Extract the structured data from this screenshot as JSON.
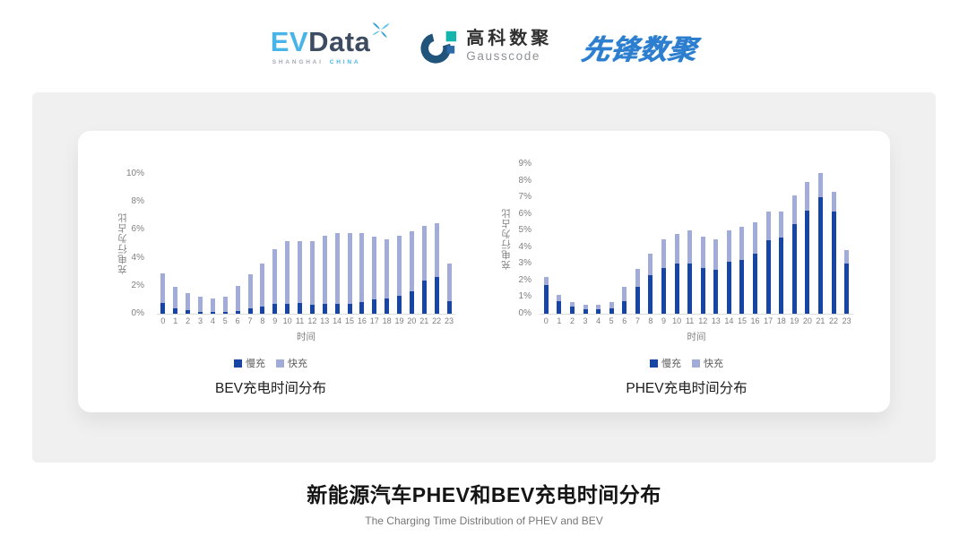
{
  "header": {
    "evdata": {
      "ev": "EV",
      "data": "Data",
      "sub_left": "SHANGHAI",
      "sub_right": "CHINA"
    },
    "gausscode": {
      "name_cn": "高科数聚",
      "name_en": "Gausscode"
    },
    "xianfeng": {
      "name": "先锋数聚"
    }
  },
  "footer": {
    "title": "新能源汽车PHEV和BEV充电时间分布",
    "subtitle": "The Charging Time Distribution of PHEV and BEV"
  },
  "colors": {
    "slow_charge": "#1745a5",
    "fast_charge": "#a2acd9",
    "axis_text": "#7f7f7f",
    "panel_bg": "#f0f0f0",
    "card_bg": "#ffffff"
  },
  "chart_data": [
    {
      "type": "bar",
      "stacked": true,
      "title": "BEV充电时间分布",
      "xlabel": "时间",
      "ylabel": "充电行为占比",
      "ylim": [
        0,
        10
      ],
      "ytick_step": 2,
      "ytick_suffix": "%",
      "grid": false,
      "legend_position": "bottom",
      "categories": [
        "0",
        "1",
        "2",
        "3",
        "4",
        "5",
        "6",
        "7",
        "8",
        "9",
        "10",
        "11",
        "12",
        "13",
        "14",
        "15",
        "16",
        "17",
        "18",
        "19",
        "20",
        "21",
        "22",
        "23"
      ],
      "series": [
        {
          "name": "慢充",
          "color": "#1745a5",
          "values": [
            0.8,
            0.4,
            0.25,
            0.15,
            0.1,
            0.1,
            0.2,
            0.4,
            0.5,
            0.7,
            0.7,
            0.75,
            0.65,
            0.7,
            0.7,
            0.7,
            0.85,
            1.0,
            1.1,
            1.3,
            1.6,
            2.4,
            2.6,
            0.9
          ]
        },
        {
          "name": "快充",
          "color": "#a2acd9",
          "values": [
            2.1,
            1.5,
            1.25,
            1.05,
            1.0,
            1.1,
            1.8,
            2.4,
            3.1,
            3.9,
            4.5,
            4.45,
            4.55,
            4.9,
            5.1,
            5.1,
            4.95,
            4.5,
            4.2,
            4.3,
            4.3,
            3.9,
            3.9,
            2.7
          ]
        }
      ]
    },
    {
      "type": "bar",
      "stacked": true,
      "title": "PHEV充电时间分布",
      "xlabel": "时间",
      "ylabel": "充电行为占比",
      "ylim": [
        0,
        9
      ],
      "ytick_step": 1,
      "ytick_suffix": "%",
      "grid": false,
      "legend_position": "bottom",
      "categories": [
        "0",
        "1",
        "2",
        "3",
        "4",
        "5",
        "6",
        "7",
        "8",
        "9",
        "10",
        "11",
        "12",
        "13",
        "14",
        "15",
        "16",
        "17",
        "18",
        "19",
        "20",
        "21",
        "22",
        "23"
      ],
      "series": [
        {
          "name": "慢充",
          "color": "#1745a5",
          "values": [
            1.75,
            0.75,
            0.45,
            0.25,
            0.25,
            0.3,
            0.75,
            1.6,
            2.3,
            2.75,
            3.0,
            3.0,
            2.75,
            2.65,
            3.1,
            3.25,
            3.6,
            4.4,
            4.6,
            5.4,
            6.2,
            7.0,
            6.15,
            3.0
          ]
        },
        {
          "name": "快充",
          "color": "#a2acd9",
          "values": [
            0.45,
            0.4,
            0.25,
            0.3,
            0.3,
            0.4,
            0.85,
            1.1,
            1.3,
            1.75,
            1.8,
            2.0,
            1.9,
            1.85,
            1.9,
            2.0,
            1.9,
            1.75,
            1.55,
            1.7,
            1.75,
            1.45,
            1.2,
            0.85
          ]
        }
      ]
    }
  ]
}
